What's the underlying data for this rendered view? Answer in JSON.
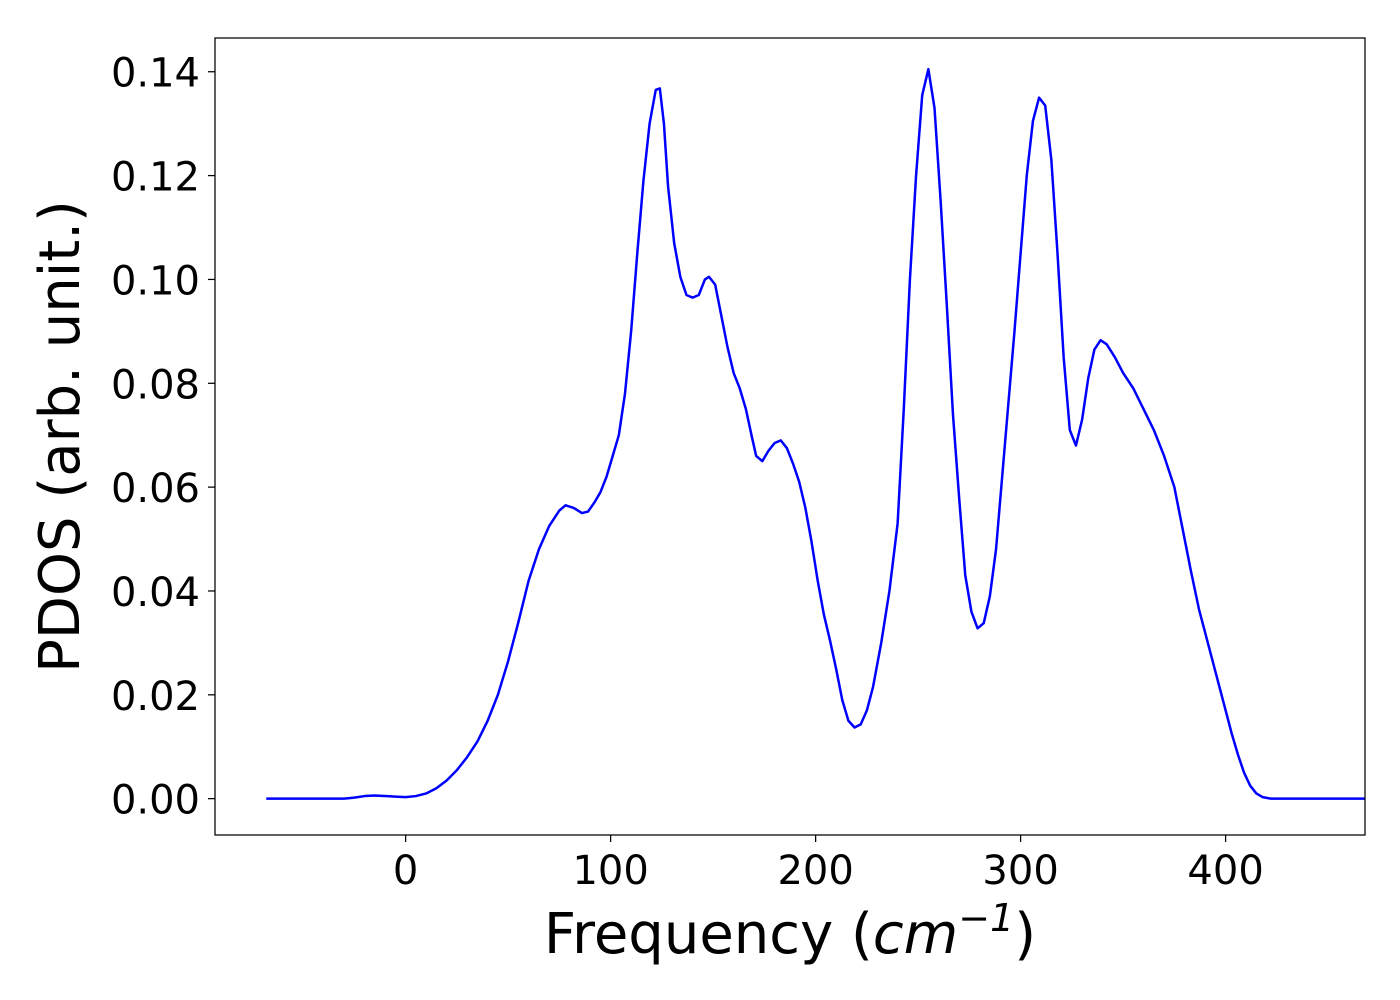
{
  "chart_data": {
    "type": "line",
    "title": "",
    "xlabel": {
      "prefix": "Frequency (",
      "var": "cm",
      "sup": "−1",
      "suffix": ")"
    },
    "ylabel": "PDOS (arb. unit.)",
    "xlim": [
      -93,
      468
    ],
    "ylim": [
      -0.007,
      0.1465
    ],
    "xticks": [
      0,
      100,
      200,
      300,
      400
    ],
    "xtick_labels": [
      "0",
      "100",
      "200",
      "300",
      "400"
    ],
    "yticks": [
      0.0,
      0.02,
      0.04,
      0.06,
      0.08,
      0.1,
      0.12,
      0.14
    ],
    "ytick_labels": [
      "0.00",
      "0.02",
      "0.04",
      "0.06",
      "0.08",
      "0.10",
      "0.12",
      "0.14"
    ],
    "grid": false,
    "legend": "none",
    "colors": {
      "line": "#0000ff",
      "axes": "#000000",
      "background": "#ffffff"
    },
    "series": [
      {
        "values": [
          [
            -68,
            0.0
          ],
          [
            -50,
            0.0
          ],
          [
            -30,
            0.0
          ],
          [
            -25,
            0.0002
          ],
          [
            -20,
            0.0005
          ],
          [
            -15,
            0.0006
          ],
          [
            -10,
            0.0005
          ],
          [
            -5,
            0.0004
          ],
          [
            0,
            0.0003
          ],
          [
            5,
            0.0005
          ],
          [
            10,
            0.001
          ],
          [
            15,
            0.002
          ],
          [
            20,
            0.0035
          ],
          [
            25,
            0.0055
          ],
          [
            30,
            0.008
          ],
          [
            35,
            0.011
          ],
          [
            40,
            0.015
          ],
          [
            45,
            0.02
          ],
          [
            50,
            0.0265
          ],
          [
            55,
            0.034
          ],
          [
            60,
            0.042
          ],
          [
            65,
            0.048
          ],
          [
            70,
            0.0525
          ],
          [
            75,
            0.0555
          ],
          [
            78,
            0.0565
          ],
          [
            82,
            0.056
          ],
          [
            86,
            0.055
          ],
          [
            89,
            0.0553
          ],
          [
            92,
            0.057
          ],
          [
            95,
            0.059
          ],
          [
            98,
            0.062
          ],
          [
            101,
            0.066
          ],
          [
            104,
            0.07
          ],
          [
            107,
            0.078
          ],
          [
            110,
            0.09
          ],
          [
            113,
            0.105
          ],
          [
            116,
            0.119
          ],
          [
            119,
            0.13
          ],
          [
            122,
            0.1365
          ],
          [
            124,
            0.1368
          ],
          [
            126,
            0.13
          ],
          [
            128,
            0.118
          ],
          [
            131,
            0.107
          ],
          [
            134,
            0.1005
          ],
          [
            137,
            0.097
          ],
          [
            140,
            0.0965
          ],
          [
            143,
            0.097
          ],
          [
            146,
            0.1
          ],
          [
            148,
            0.1005
          ],
          [
            151,
            0.099
          ],
          [
            154,
            0.093
          ],
          [
            157,
            0.087
          ],
          [
            160,
            0.082
          ],
          [
            163,
            0.079
          ],
          [
            166,
            0.075
          ],
          [
            169,
            0.0695
          ],
          [
            171,
            0.066
          ],
          [
            174,
            0.065
          ],
          [
            177,
            0.067
          ],
          [
            180,
            0.0685
          ],
          [
            183,
            0.069
          ],
          [
            186,
            0.0675
          ],
          [
            189,
            0.0645
          ],
          [
            192,
            0.061
          ],
          [
            195,
            0.056
          ],
          [
            198,
            0.0495
          ],
          [
            201,
            0.042
          ],
          [
            204,
            0.0355
          ],
          [
            207,
            0.0305
          ],
          [
            210,
            0.025
          ],
          [
            213,
            0.019
          ],
          [
            216,
            0.015
          ],
          [
            219,
            0.0137
          ],
          [
            222,
            0.0143
          ],
          [
            225,
            0.017
          ],
          [
            228,
            0.0215
          ],
          [
            232,
            0.03
          ],
          [
            236,
            0.04
          ],
          [
            240,
            0.053
          ],
          [
            243,
            0.075
          ],
          [
            246,
            0.1
          ],
          [
            249,
            0.12
          ],
          [
            252,
            0.1355
          ],
          [
            255,
            0.1405
          ],
          [
            258,
            0.133
          ],
          [
            261,
            0.115
          ],
          [
            264,
            0.095
          ],
          [
            267,
            0.074
          ],
          [
            270,
            0.058
          ],
          [
            273,
            0.043
          ],
          [
            276,
            0.036
          ],
          [
            279,
            0.0328
          ],
          [
            282,
            0.0338
          ],
          [
            285,
            0.039
          ],
          [
            288,
            0.048
          ],
          [
            291,
            0.062
          ],
          [
            294,
            0.076
          ],
          [
            297,
            0.09
          ],
          [
            300,
            0.105
          ],
          [
            303,
            0.12
          ],
          [
            306,
            0.1305
          ],
          [
            309,
            0.135
          ],
          [
            312,
            0.1335
          ],
          [
            315,
            0.123
          ],
          [
            318,
            0.105
          ],
          [
            321,
            0.085
          ],
          [
            324,
            0.071
          ],
          [
            327,
            0.068
          ],
          [
            330,
            0.073
          ],
          [
            333,
            0.081
          ],
          [
            336,
            0.0865
          ],
          [
            339,
            0.0883
          ],
          [
            342,
            0.0875
          ],
          [
            346,
            0.085
          ],
          [
            350,
            0.082
          ],
          [
            355,
            0.079
          ],
          [
            360,
            0.075
          ],
          [
            365,
            0.071
          ],
          [
            370,
            0.066
          ],
          [
            375,
            0.06
          ],
          [
            379,
            0.052
          ],
          [
            383,
            0.044
          ],
          [
            387,
            0.0365
          ],
          [
            391,
            0.0305
          ],
          [
            395,
            0.0245
          ],
          [
            399,
            0.0185
          ],
          [
            403,
            0.0125
          ],
          [
            406,
            0.0085
          ],
          [
            409,
            0.005
          ],
          [
            412,
            0.0025
          ],
          [
            415,
            0.001
          ],
          [
            418,
            0.0003
          ],
          [
            422,
            0.0
          ],
          [
            435,
            0.0
          ],
          [
            450,
            0.0
          ],
          [
            468,
            0.0
          ]
        ]
      }
    ]
  }
}
